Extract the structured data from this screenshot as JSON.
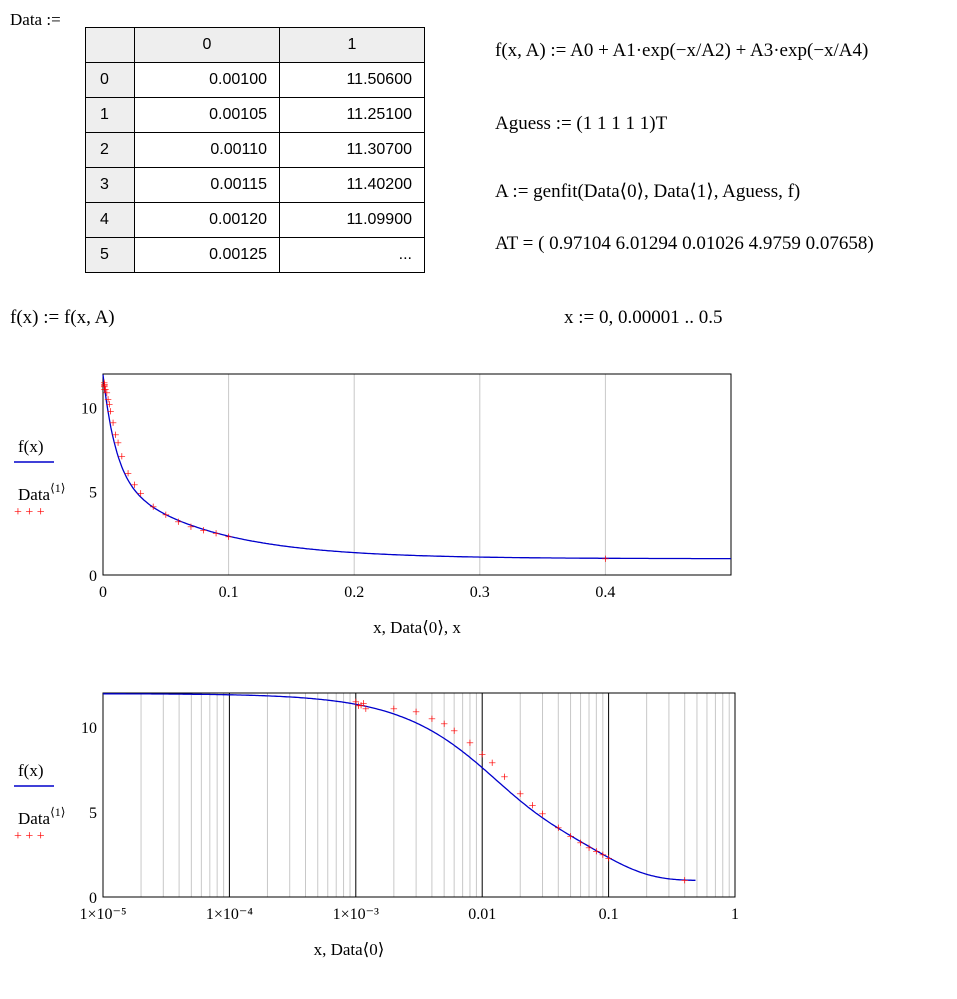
{
  "data_label": "Data :=",
  "table": {
    "headers": [
      "0",
      "1"
    ],
    "rows": [
      {
        "idx": "0",
        "c0": "0.00100",
        "c1": "11.50600"
      },
      {
        "idx": "1",
        "c0": "0.00105",
        "c1": "11.25100"
      },
      {
        "idx": "2",
        "c0": "0.00110",
        "c1": "11.30700"
      },
      {
        "idx": "3",
        "c0": "0.00115",
        "c1": "11.40200"
      },
      {
        "idx": "4",
        "c0": "0.00120",
        "c1": "11.09900"
      },
      {
        "idx": "5",
        "c0": "0.00125",
        "c1": "..."
      }
    ]
  },
  "equations": {
    "model": "f(x, A) := A0 + A1·exp(−x/A2) + A3·exp(−x/A4)",
    "guess": "Aguess := (1 1 1 1 1)T",
    "fit": "A := genfit(Data⟨0⟩, Data⟨1⟩, Aguess, f)",
    "result_label": "AT = (",
    "result_values": "0.97104   6.01294   0.01026   4.9759   0.07658)",
    "f_def": "f(x) := f(x, A)",
    "range_def": "x := 0, 0.00001 .. 0.5"
  },
  "legend": {
    "series1": "f(x)",
    "series2_main": "Data",
    "series2_sup": "⟨1⟩"
  },
  "colors": {
    "fit_line": "#0000cc",
    "data_points": "#ff0000",
    "grid": "#c8c8c8",
    "major_grid": "#000000"
  },
  "chart_data": [
    {
      "type": "line",
      "xscale": "linear",
      "xlim": [
        0,
        0.5
      ],
      "ylim": [
        0,
        12
      ],
      "xticks": [
        0,
        0.1,
        0.2,
        0.3,
        0.4
      ],
      "xtick_labels": [
        "0",
        "0.1",
        "0.2",
        "0.3",
        "0.4"
      ],
      "yticks": [
        0,
        5,
        10
      ],
      "ytick_labels": [
        "0",
        "5",
        "10"
      ],
      "xlabel": "x, Data⟨0⟩, x",
      "grid": true,
      "legend_position": "left",
      "series": [
        {
          "name": "f(x)",
          "kind": "fit",
          "params": [
            0.97104,
            6.01294,
            0.01026,
            4.9759,
            0.07658
          ]
        },
        {
          "name": "Data⟨1⟩",
          "kind": "scatter",
          "x": [
            0.001,
            0.00105,
            0.0011,
            0.00115,
            0.0012,
            0.002,
            0.003,
            0.004,
            0.005,
            0.006,
            0.008,
            0.01,
            0.012,
            0.015,
            0.02,
            0.025,
            0.03,
            0.04,
            0.05,
            0.06,
            0.07,
            0.08,
            0.09,
            0.1,
            0.4
          ],
          "y": [
            11.506,
            11.251,
            11.307,
            11.402,
            11.099,
            11.1,
            10.9,
            10.5,
            10.2,
            9.8,
            9.1,
            8.4,
            7.9,
            7.1,
            6.1,
            5.4,
            4.9,
            4.1,
            3.6,
            3.2,
            2.9,
            2.7,
            2.5,
            2.3,
            1.0
          ]
        }
      ]
    },
    {
      "type": "line",
      "xscale": "log",
      "xlim": [
        1e-05,
        1
      ],
      "ylim": [
        0,
        12
      ],
      "xticks": [
        1e-05,
        0.0001,
        0.001,
        0.01,
        0.1,
        1
      ],
      "xtick_labels": [
        "1×10⁻⁵",
        "1×10⁻⁴",
        "1×10⁻³",
        "0.01",
        "0.1",
        "1"
      ],
      "yticks": [
        0,
        5,
        10
      ],
      "ytick_labels": [
        "0",
        "5",
        "10"
      ],
      "xlabel": "x, Data⟨0⟩",
      "grid": true,
      "legend_position": "left",
      "series": [
        {
          "name": "f(x)",
          "kind": "fit",
          "params": [
            0.97104,
            6.01294,
            0.01026,
            4.9759,
            0.07658
          ]
        },
        {
          "name": "Data⟨1⟩",
          "kind": "scatter",
          "x": [
            0.001,
            0.00105,
            0.0011,
            0.00115,
            0.0012,
            0.002,
            0.003,
            0.004,
            0.005,
            0.006,
            0.008,
            0.01,
            0.012,
            0.015,
            0.02,
            0.025,
            0.03,
            0.04,
            0.05,
            0.06,
            0.07,
            0.08,
            0.09,
            0.1,
            0.4
          ],
          "y": [
            11.506,
            11.251,
            11.307,
            11.402,
            11.099,
            11.1,
            10.9,
            10.5,
            10.2,
            9.8,
            9.1,
            8.4,
            7.9,
            7.1,
            6.1,
            5.4,
            4.9,
            4.1,
            3.6,
            3.2,
            2.9,
            2.7,
            2.5,
            2.3,
            1.0
          ]
        }
      ]
    }
  ]
}
